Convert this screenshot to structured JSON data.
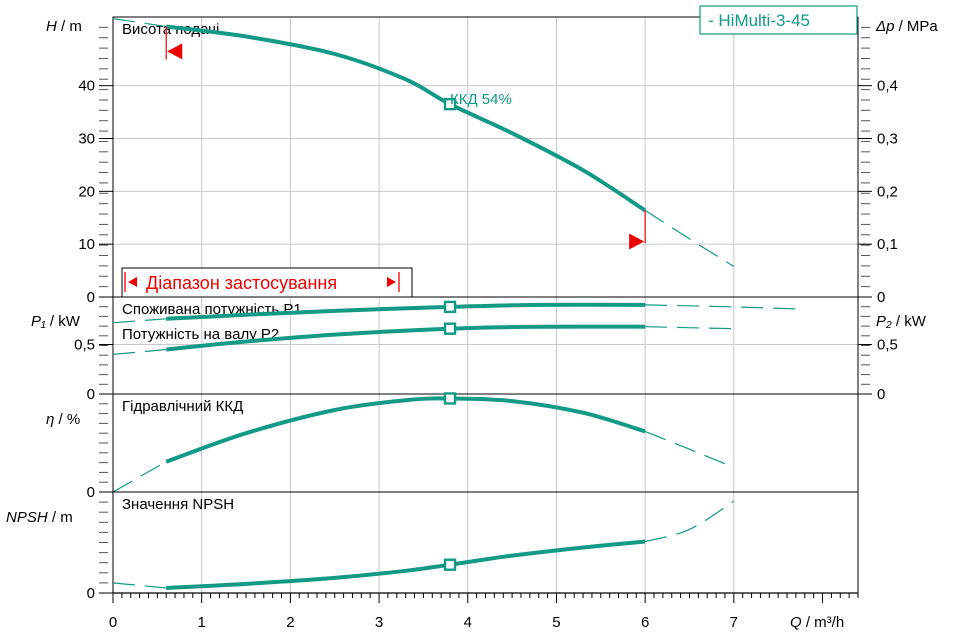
{
  "colors": {
    "curve": "#129a86",
    "marker": "#129a86",
    "range_red": "#ee0000",
    "grid": "#c8c8c8",
    "axis": "#000000",
    "text": "#000000"
  },
  "chart_data": {
    "type": "line",
    "legend": {
      "text": "-  HiMulti-3-45",
      "placement": "top-right"
    },
    "x_axis": {
      "label_var": "Q",
      "label_unit": " / m³/h",
      "range": [
        0,
        8.4
      ],
      "ticks": [
        0,
        1,
        2,
        3,
        4,
        5,
        6,
        7
      ],
      "tick_labels": [
        "0",
        "1",
        "2",
        "3",
        "4",
        "5",
        "6",
        "7"
      ]
    },
    "operating_range_label": "Діапазон застосування",
    "operating_point_q": 3.8,
    "panels": [
      {
        "id": "head",
        "title": "Висота подачі",
        "y_var": "H",
        "y_unit": " / m",
        "y_range": [
          0,
          53
        ],
        "y_ticks": [
          0,
          10,
          20,
          30,
          40
        ],
        "y_tick_labels": [
          "0",
          "10",
          "20",
          "30",
          "40"
        ],
        "right_var": "Δp",
        "right_unit": " / MPa",
        "right_ticks": [
          0,
          0.1,
          0.2,
          0.3,
          0.4
        ],
        "right_tick_labels": [
          "0",
          "0,1",
          "0,2",
          "0,3",
          "0,4"
        ],
        "right_range": [
          0,
          0.53
        ],
        "annotation": "ККД  54%",
        "series": [
          {
            "id": "H",
            "solid": [
              [
                0.6,
                51.2
              ],
              [
                1.5,
                49.3
              ],
              [
                2.5,
                46.0
              ],
              [
                3.3,
                41.2
              ],
              [
                3.8,
                36.5
              ],
              [
                4.5,
                31.0
              ],
              [
                5.3,
                24.0
              ],
              [
                6.0,
                16.4
              ]
            ],
            "dashed_start": [
              [
                0,
                52.7
              ],
              [
                0.6,
                51.2
              ]
            ],
            "dashed_end": [
              [
                6.0,
                16.4
              ],
              [
                6.5,
                11.0
              ],
              [
                7.0,
                5.8
              ]
            ],
            "marker": [
              3.8,
              36.5
            ]
          }
        ],
        "range_markers": [
          {
            "q": 0.6,
            "y": 46.5,
            "dir": "left",
            "from": 51.2
          },
          {
            "q": 6.0,
            "y": 10.5,
            "dir": "right",
            "from": 16.4
          }
        ]
      },
      {
        "id": "power",
        "title": "Споживана потужність P1",
        "subtitle": "Потужність на валу P2",
        "y_var": "P₁",
        "y_unit": " / kW",
        "y_range": [
          0,
          0.98
        ],
        "y_ticks": [
          0,
          0.5
        ],
        "y_tick_labels": [
          "0",
          "0,5"
        ],
        "right_var": "P₂",
        "right_unit": " / kW",
        "right_ticks": [
          0,
          0.5
        ],
        "right_tick_labels": [
          "0",
          "0,5"
        ],
        "series": [
          {
            "id": "P1",
            "solid": [
              [
                0.6,
                0.76
              ],
              [
                1.5,
                0.8
              ],
              [
                2.5,
                0.84
              ],
              [
                3.8,
                0.88
              ],
              [
                4.8,
                0.9
              ],
              [
                6.0,
                0.9
              ]
            ],
            "dashed_start": [
              [
                0,
                0.72
              ],
              [
                0.6,
                0.76
              ]
            ],
            "dashed_end": [
              [
                6.0,
                0.9
              ],
              [
                7.0,
                0.88
              ],
              [
                7.7,
                0.86
              ]
            ],
            "marker": [
              3.8,
              0.88
            ]
          },
          {
            "id": "P2",
            "solid": [
              [
                0.6,
                0.45
              ],
              [
                1.5,
                0.53
              ],
              [
                2.5,
                0.6
              ],
              [
                3.8,
                0.66
              ],
              [
                4.8,
                0.68
              ],
              [
                6.0,
                0.68
              ]
            ],
            "dashed_start": [
              [
                0,
                0.4
              ],
              [
                0.6,
                0.45
              ]
            ],
            "dashed_end": [
              [
                6.0,
                0.68
              ],
              [
                7.0,
                0.66
              ]
            ],
            "marker": [
              3.8,
              0.66
            ]
          }
        ]
      },
      {
        "id": "eff",
        "title": "Гідравлічний ККД",
        "y_var": "η",
        "y_unit": " / %",
        "y_range": [
          0,
          55
        ],
        "y_ticks": [
          0
        ],
        "y_tick_labels": [
          "0"
        ],
        "series": [
          {
            "id": "eta",
            "solid": [
              [
                0.6,
                17.0
              ],
              [
                1.5,
                33.0
              ],
              [
                2.5,
                46.0
              ],
              [
                3.3,
                51.5
              ],
              [
                3.8,
                52.5
              ],
              [
                4.5,
                51.0
              ],
              [
                5.3,
                44.5
              ],
              [
                6.0,
                34.0
              ]
            ],
            "dashed_start": [
              [
                0,
                0
              ],
              [
                0.6,
                17.0
              ]
            ],
            "dashed_end": [
              [
                6.0,
                34.0
              ],
              [
                6.5,
                24.0
              ],
              [
                7.0,
                13.8
              ]
            ],
            "marker": [
              3.8,
              52.5
            ]
          }
        ]
      },
      {
        "id": "npsh",
        "title": "Значення NPSH",
        "y_var": "NPSH",
        "y_unit": " / m",
        "y_range": [
          0,
          10
        ],
        "y_ticks": [
          0
        ],
        "y_tick_labels": [
          "0"
        ],
        "series": [
          {
            "id": "npsh",
            "solid": [
              [
                0.6,
                0.5
              ],
              [
                1.5,
                0.9
              ],
              [
                2.5,
                1.5
              ],
              [
                3.3,
                2.2
              ],
              [
                3.8,
                2.8
              ],
              [
                4.5,
                3.7
              ],
              [
                5.3,
                4.5
              ],
              [
                6.0,
                5.1
              ]
            ],
            "dashed_start": [
              [
                0,
                1.0
              ],
              [
                0.6,
                0.5
              ]
            ],
            "dashed_end": [
              [
                6.0,
                5.1
              ],
              [
                6.5,
                6.3
              ],
              [
                7.0,
                9.1
              ]
            ],
            "marker": [
              3.8,
              2.8
            ]
          }
        ]
      }
    ]
  }
}
